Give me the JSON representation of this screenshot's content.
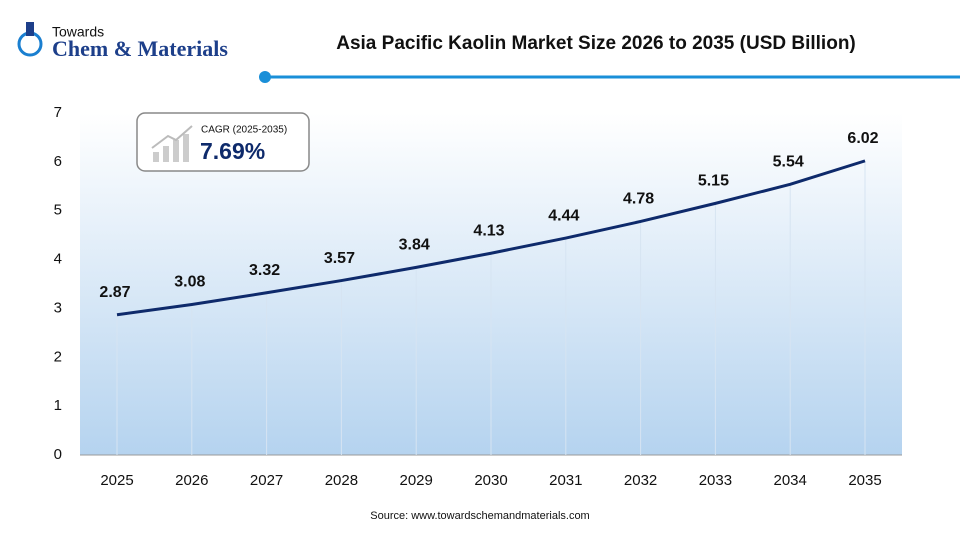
{
  "logo": {
    "line1": "Towards",
    "line2": "Chem & Materials"
  },
  "cagr": {
    "label": "CAGR (2025-2035)",
    "value": "7.69%"
  },
  "source": "Source: www.towardschemandmaterials.com",
  "chart_data": {
    "type": "line",
    "title": "Asia Pacific Kaolin Market Size 2026 to 2035 (USD Billion)",
    "categories": [
      "2025",
      "2026",
      "2027",
      "2028",
      "2029",
      "2030",
      "2031",
      "2032",
      "2033",
      "2034",
      "2035"
    ],
    "values": [
      2.87,
      3.08,
      3.32,
      3.57,
      3.84,
      4.13,
      4.44,
      4.78,
      5.15,
      5.54,
      6.02
    ],
    "color": "#0e2a6b",
    "ylim": [
      0,
      7
    ],
    "yticks": [
      0,
      1,
      2,
      3,
      4,
      5,
      6,
      7
    ]
  }
}
